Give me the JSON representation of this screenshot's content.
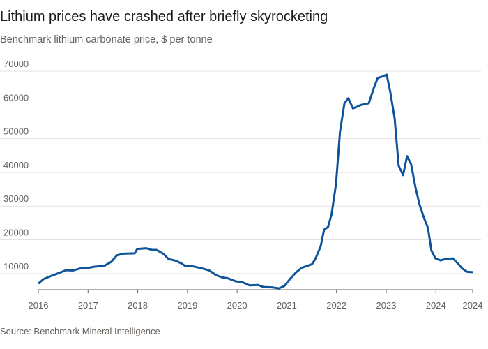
{
  "chart_data": {
    "type": "line",
    "title": "Lithium prices have crashed after briefly skyrocketing",
    "subtitle": "Benchmark lithium carbonate price, $ per tonne",
    "source": "Source: Benchmark Mineral Intelligence",
    "x": [
      2016.0,
      2016.1,
      2016.21,
      2016.35,
      2016.56,
      2016.7,
      2016.84,
      2016.98,
      2017.12,
      2017.33,
      2017.47,
      2017.58,
      2017.72,
      2017.94,
      2017.99,
      2018.17,
      2018.29,
      2018.38,
      2018.52,
      2018.62,
      2018.76,
      2018.88,
      2018.95,
      2019.09,
      2019.3,
      2019.44,
      2019.58,
      2019.69,
      2019.81,
      2019.97,
      2020.11,
      2020.25,
      2020.42,
      2020.53,
      2020.7,
      2020.84,
      2020.95,
      2021.06,
      2021.19,
      2021.3,
      2021.4,
      2021.51,
      2021.58,
      2021.68,
      2021.75,
      2021.83,
      2021.9,
      2021.99,
      2022.07,
      2022.16,
      2022.24,
      2022.33,
      2022.42,
      2022.49,
      2022.65,
      2022.75,
      2022.83,
      2022.94,
      2023.01,
      2023.08,
      2023.17,
      2023.25,
      2023.34,
      2023.42,
      2023.5,
      2023.59,
      2023.67,
      2023.76,
      2023.84,
      2023.91,
      2023.99,
      2024.09,
      2024.2,
      2024.34,
      2024.44,
      2024.53,
      2024.63,
      2024.74
    ],
    "values": [
      7000,
      8300,
      9000,
      9800,
      11000,
      10900,
      11500,
      11600,
      12000,
      12300,
      13500,
      15400,
      15900,
      16000,
      17300,
      17500,
      17000,
      17000,
      15800,
      14300,
      13800,
      13000,
      12300,
      12200,
      11500,
      10900,
      9500,
      8900,
      8600,
      7700,
      7400,
      6500,
      6600,
      6000,
      5900,
      5600,
      6300,
      8300,
      10400,
      11700,
      12200,
      12800,
      14500,
      18000,
      23000,
      23800,
      27500,
      36500,
      52000,
      60500,
      62000,
      59000,
      59500,
      60000,
      60500,
      65000,
      68000,
      68500,
      69000,
      64000,
      56000,
      42000,
      39200,
      44800,
      42500,
      35500,
      30500,
      26500,
      23500,
      16800,
      14500,
      13900,
      14300,
      14500,
      13000,
      11500,
      10500,
      10400
    ],
    "color": "#0f5499",
    "xlim": [
      2016,
      2024.74
    ],
    "xticks": [
      2016,
      2017,
      2018,
      2019,
      2020,
      2021,
      2022,
      2023,
      2024,
      {
        "value": 2024.74,
        "label": "2024"
      }
    ],
    "ylim": [
      5200,
      72500
    ],
    "yticks": [
      10000,
      20000,
      30000,
      40000,
      50000,
      60000,
      70000
    ],
    "grid": true
  }
}
